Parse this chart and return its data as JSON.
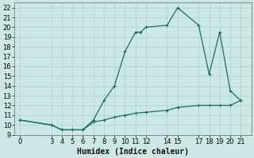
{
  "xlabel": "Humidex (Indice chaleur)",
  "bg_color": "#cce8e6",
  "line_color": "#1e6b5e",
  "grid_color": "#aed4d1",
  "xlim": [
    -0.5,
    22
  ],
  "ylim": [
    9,
    22.5
  ],
  "yticks": [
    9,
    10,
    11,
    12,
    13,
    14,
    15,
    16,
    17,
    18,
    19,
    20,
    21,
    22
  ],
  "xticks": [
    0,
    3,
    4,
    5,
    6,
    7,
    8,
    9,
    10,
    11,
    12,
    14,
    15,
    17,
    18,
    19,
    20,
    21
  ],
  "upper_x": [
    0,
    3,
    4,
    5,
    6,
    7,
    8,
    9,
    10,
    11,
    11.5,
    12,
    14,
    15,
    17,
    18,
    19,
    20,
    21
  ],
  "upper_y": [
    10.5,
    10.0,
    9.5,
    9.5,
    9.5,
    10.5,
    12.5,
    14.0,
    17.5,
    19.5,
    19.5,
    20.0,
    20.2,
    22.0,
    20.2,
    15.2,
    19.5,
    13.5,
    12.5
  ],
  "lower_x": [
    0,
    3,
    4,
    5,
    6,
    7,
    8,
    9,
    10,
    11,
    12,
    14,
    15,
    17,
    18,
    19,
    20,
    21
  ],
  "lower_y": [
    10.5,
    10.0,
    9.5,
    9.5,
    9.5,
    10.3,
    10.5,
    10.8,
    11.0,
    11.2,
    11.3,
    11.5,
    11.8,
    12.0,
    12.0,
    12.0,
    12.0,
    12.5
  ],
  "tick_fontsize": 6,
  "label_fontsize": 7,
  "spine_color": "#666666"
}
